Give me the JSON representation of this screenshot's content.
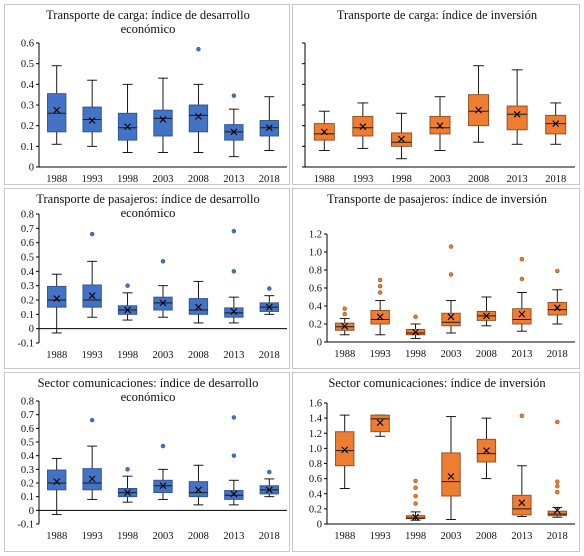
{
  "colors": {
    "blue": "#4472C4",
    "blue_edge": "#2F528F",
    "orange": "#ED7D31",
    "orange_edge": "#8E4A1D",
    "axis": "#000000"
  },
  "chart_data": [
    {
      "type": "boxplot",
      "title_lines": [
        "Transporte de carga: índice de desarrollo",
        "económico"
      ],
      "color": "blue",
      "categories": [
        "1988",
        "1993",
        "1998",
        "2003",
        "2008",
        "2013",
        "2018"
      ],
      "ylim": [
        0,
        0.6
      ],
      "yticks": [
        "0",
        "0.1",
        "0.2",
        "0.3",
        "0.4",
        "0.5",
        "0.6"
      ],
      "boxes": [
        {
          "min": 0.11,
          "q1": 0.17,
          "median": 0.26,
          "q3": 0.355,
          "max": 0.49,
          "mean": 0.275,
          "outliers": []
        },
        {
          "min": 0.1,
          "q1": 0.17,
          "median": 0.23,
          "q3": 0.29,
          "max": 0.42,
          "mean": 0.225,
          "outliers": []
        },
        {
          "min": 0.07,
          "q1": 0.13,
          "median": 0.19,
          "q3": 0.26,
          "max": 0.4,
          "mean": 0.195,
          "outliers": []
        },
        {
          "min": 0.07,
          "q1": 0.15,
          "median": 0.235,
          "q3": 0.275,
          "max": 0.43,
          "mean": 0.23,
          "outliers": []
        },
        {
          "min": 0.07,
          "q1": 0.17,
          "median": 0.25,
          "q3": 0.3,
          "max": 0.4,
          "mean": 0.245,
          "outliers": [
            0.57
          ]
        },
        {
          "min": 0.05,
          "q1": 0.13,
          "median": 0.17,
          "q3": 0.205,
          "max": 0.28,
          "mean": 0.17,
          "outliers": [
            0.345
          ]
        },
        {
          "min": 0.08,
          "q1": 0.15,
          "median": 0.19,
          "q3": 0.225,
          "max": 0.34,
          "mean": 0.19,
          "outliers": []
        }
      ]
    },
    {
      "type": "boxplot",
      "title_lines": [
        "Transporte de carga: índice de inversión"
      ],
      "color": "orange",
      "categories": [
        "1988",
        "1993",
        "1998",
        "2003",
        "2008",
        "2013",
        "2018"
      ],
      "ylim": [
        0,
        0.6
      ],
      "yticks": [
        "",
        "",
        "",
        "",
        "",
        "",
        ""
      ],
      "boxes": [
        {
          "min": 0.08,
          "q1": 0.13,
          "median": 0.16,
          "q3": 0.21,
          "max": 0.27,
          "mean": 0.17,
          "outliers": []
        },
        {
          "min": 0.09,
          "q1": 0.15,
          "median": 0.19,
          "q3": 0.245,
          "max": 0.31,
          "mean": 0.195,
          "outliers": []
        },
        {
          "min": 0.04,
          "q1": 0.1,
          "median": 0.12,
          "q3": 0.165,
          "max": 0.26,
          "mean": 0.135,
          "outliers": []
        },
        {
          "min": 0.08,
          "q1": 0.16,
          "median": 0.19,
          "q3": 0.245,
          "max": 0.34,
          "mean": 0.2,
          "outliers": []
        },
        {
          "min": 0.12,
          "q1": 0.2,
          "median": 0.27,
          "q3": 0.35,
          "max": 0.49,
          "mean": 0.275,
          "outliers": []
        },
        {
          "min": 0.11,
          "q1": 0.18,
          "median": 0.255,
          "q3": 0.295,
          "max": 0.47,
          "mean": 0.255,
          "outliers": []
        },
        {
          "min": 0.11,
          "q1": 0.16,
          "median": 0.21,
          "q3": 0.25,
          "max": 0.31,
          "mean": 0.21,
          "outliers": []
        }
      ]
    },
    {
      "type": "boxplot",
      "title_lines": [
        "Transporte de pasajeros: índice de desarrollo",
        "económico"
      ],
      "color": "blue",
      "categories": [
        "1988",
        "1993",
        "1998",
        "2003",
        "2008",
        "2013",
        "2018"
      ],
      "ylim": [
        -0.1,
        0.8
      ],
      "yticks": [
        "-0.1",
        "0",
        "0.1",
        "0.2",
        "0.3",
        "0.4",
        "0.5",
        "0.6",
        "0.7",
        "0.8"
      ],
      "boxes": [
        {
          "min": -0.03,
          "q1": 0.15,
          "median": 0.2,
          "q3": 0.295,
          "max": 0.38,
          "mean": 0.21,
          "outliers": []
        },
        {
          "min": 0.08,
          "q1": 0.15,
          "median": 0.2,
          "q3": 0.305,
          "max": 0.47,
          "mean": 0.23,
          "outliers": [
            0.66
          ]
        },
        {
          "min": 0.06,
          "q1": 0.1,
          "median": 0.13,
          "q3": 0.16,
          "max": 0.25,
          "mean": 0.13,
          "outliers": [
            0.3
          ]
        },
        {
          "min": 0.08,
          "q1": 0.13,
          "median": 0.18,
          "q3": 0.22,
          "max": 0.3,
          "mean": 0.18,
          "outliers": [
            0.47
          ]
        },
        {
          "min": 0.04,
          "q1": 0.1,
          "median": 0.13,
          "q3": 0.21,
          "max": 0.33,
          "mean": 0.15,
          "outliers": []
        },
        {
          "min": 0.04,
          "q1": 0.08,
          "median": 0.11,
          "q3": 0.145,
          "max": 0.22,
          "mean": 0.12,
          "outliers": [
            0.4,
            0.68
          ]
        },
        {
          "min": 0.1,
          "q1": 0.12,
          "median": 0.15,
          "q3": 0.18,
          "max": 0.23,
          "mean": 0.15,
          "outliers": [
            0.28
          ]
        }
      ]
    },
    {
      "type": "boxplot",
      "title_lines": [
        "Transporte de pasajeros: índice de inversión"
      ],
      "color": "orange",
      "categories": [
        "1988",
        "1993",
        "1998",
        "2003",
        "2008",
        "2013",
        "2018"
      ],
      "ylim": [
        0,
        1.2
      ],
      "yticks": [
        "0",
        "0.2",
        "0.4",
        "0.6",
        "0.8",
        "1.0",
        "1.2"
      ],
      "boxes": [
        {
          "min": 0.08,
          "q1": 0.13,
          "median": 0.17,
          "q3": 0.21,
          "max": 0.26,
          "mean": 0.175,
          "outliers": [
            0.31,
            0.37
          ]
        },
        {
          "min": 0.08,
          "q1": 0.2,
          "median": 0.25,
          "q3": 0.35,
          "max": 0.46,
          "mean": 0.28,
          "outliers": [
            0.55,
            0.62,
            0.69
          ]
        },
        {
          "min": 0.04,
          "q1": 0.08,
          "median": 0.1,
          "q3": 0.14,
          "max": 0.2,
          "mean": 0.11,
          "outliers": [
            0.28
          ]
        },
        {
          "min": 0.1,
          "q1": 0.18,
          "median": 0.22,
          "q3": 0.32,
          "max": 0.46,
          "mean": 0.28,
          "outliers": [
            0.75,
            1.06
          ]
        },
        {
          "min": 0.18,
          "q1": 0.24,
          "median": 0.29,
          "q3": 0.34,
          "max": 0.5,
          "mean": 0.29,
          "outliers": []
        },
        {
          "min": 0.12,
          "q1": 0.2,
          "median": 0.25,
          "q3": 0.37,
          "max": 0.55,
          "mean": 0.31,
          "outliers": [
            0.7,
            0.92
          ]
        },
        {
          "min": 0.2,
          "q1": 0.3,
          "median": 0.36,
          "q3": 0.44,
          "max": 0.58,
          "mean": 0.38,
          "outliers": [
            0.79
          ]
        }
      ]
    },
    {
      "type": "boxplot",
      "title_lines": [
        "Sector comunicaciones: índice de desarrollo",
        "económico"
      ],
      "color": "blue",
      "categories": [
        "1988",
        "1993",
        "1998",
        "2003",
        "2008",
        "2013",
        "2018"
      ],
      "ylim": [
        -0.1,
        0.8
      ],
      "yticks": [
        "-0.1",
        "0",
        "0.1",
        "0.2",
        "0.3",
        "0.4",
        "0.5",
        "0.6",
        "0.7",
        "0.8"
      ],
      "boxes": [
        {
          "min": -0.03,
          "q1": 0.15,
          "median": 0.2,
          "q3": 0.295,
          "max": 0.38,
          "mean": 0.21,
          "outliers": []
        },
        {
          "min": 0.08,
          "q1": 0.15,
          "median": 0.2,
          "q3": 0.305,
          "max": 0.47,
          "mean": 0.23,
          "outliers": [
            0.66
          ]
        },
        {
          "min": 0.06,
          "q1": 0.1,
          "median": 0.13,
          "q3": 0.16,
          "max": 0.25,
          "mean": 0.13,
          "outliers": [
            0.3
          ]
        },
        {
          "min": 0.08,
          "q1": 0.13,
          "median": 0.18,
          "q3": 0.22,
          "max": 0.3,
          "mean": 0.18,
          "outliers": [
            0.47
          ]
        },
        {
          "min": 0.04,
          "q1": 0.1,
          "median": 0.13,
          "q3": 0.21,
          "max": 0.33,
          "mean": 0.15,
          "outliers": []
        },
        {
          "min": 0.04,
          "q1": 0.08,
          "median": 0.11,
          "q3": 0.145,
          "max": 0.22,
          "mean": 0.12,
          "outliers": [
            0.4,
            0.68
          ]
        },
        {
          "min": 0.1,
          "q1": 0.12,
          "median": 0.15,
          "q3": 0.18,
          "max": 0.23,
          "mean": 0.15,
          "outliers": [
            0.28
          ]
        }
      ]
    },
    {
      "type": "boxplot",
      "title_lines": [
        "Sector comunicaciones: índice de inversión"
      ],
      "color": "orange",
      "categories": [
        "1988",
        "1993",
        "1998",
        "2003",
        "2008",
        "2013",
        "2018"
      ],
      "ylim": [
        0,
        1.6
      ],
      "yticks": [
        "0",
        "0.2",
        "0.4",
        "0.6",
        "0.8",
        "1.0",
        "1.2",
        "1.4",
        "1.6"
      ],
      "boxes": [
        {
          "min": 0.47,
          "q1": 0.77,
          "median": 0.97,
          "q3": 1.22,
          "max": 1.44,
          "mean": 0.98,
          "outliers": []
        },
        {
          "min": 1.16,
          "q1": 1.22,
          "median": 1.39,
          "q3": 1.44,
          "max": 1.44,
          "mean": 1.34,
          "outliers": []
        },
        {
          "min": 0.05,
          "q1": 0.07,
          "median": 0.08,
          "q3": 0.11,
          "max": 0.16,
          "mean": 0.09,
          "outliers": [
            0.27,
            0.37,
            0.48,
            0.57
          ]
        },
        {
          "min": 0.06,
          "q1": 0.37,
          "median": 0.56,
          "q3": 0.94,
          "max": 1.42,
          "mean": 0.63,
          "outliers": []
        },
        {
          "min": 0.6,
          "q1": 0.82,
          "median": 0.93,
          "q3": 1.12,
          "max": 1.4,
          "mean": 0.97,
          "outliers": []
        },
        {
          "min": 0.1,
          "q1": 0.12,
          "median": 0.2,
          "q3": 0.38,
          "max": 0.77,
          "mean": 0.28,
          "outliers": [
            1.43
          ]
        },
        {
          "min": 0.09,
          "q1": 0.11,
          "median": 0.13,
          "q3": 0.17,
          "max": 0.22,
          "mean": 0.18,
          "outliers": [
            0.42,
            0.5,
            0.56,
            1.35
          ]
        }
      ]
    }
  ]
}
